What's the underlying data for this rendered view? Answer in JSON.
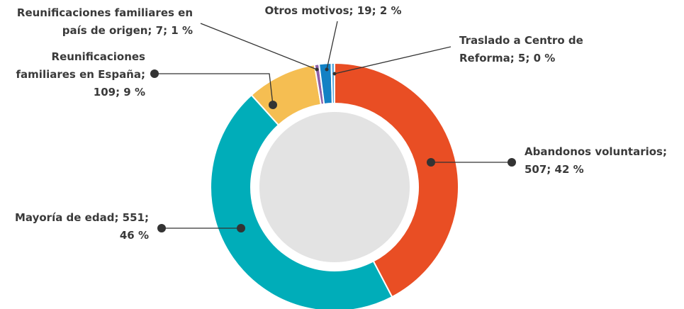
{
  "chart_data": {
    "type": "donut",
    "labels": [
      "Abandonos voluntarios; 507; 42 %",
      "Mayoría de edad; 551; 46 %",
      "Reunificaciones familiares en España; 109; 9 %",
      "Reunificaciones familiares en país de origen; 7; 1 %",
      "Otros motivos; 19; 2 %",
      "Traslado a Centro de Reforma; 5; 0 %"
    ],
    "values": [
      507,
      551,
      109,
      7,
      19,
      5
    ],
    "colors": [
      "#e94e24",
      "#00adb9",
      "#f5be52",
      "#8e5fa8",
      "#1381c4",
      "#5aa9dd"
    ]
  }
}
